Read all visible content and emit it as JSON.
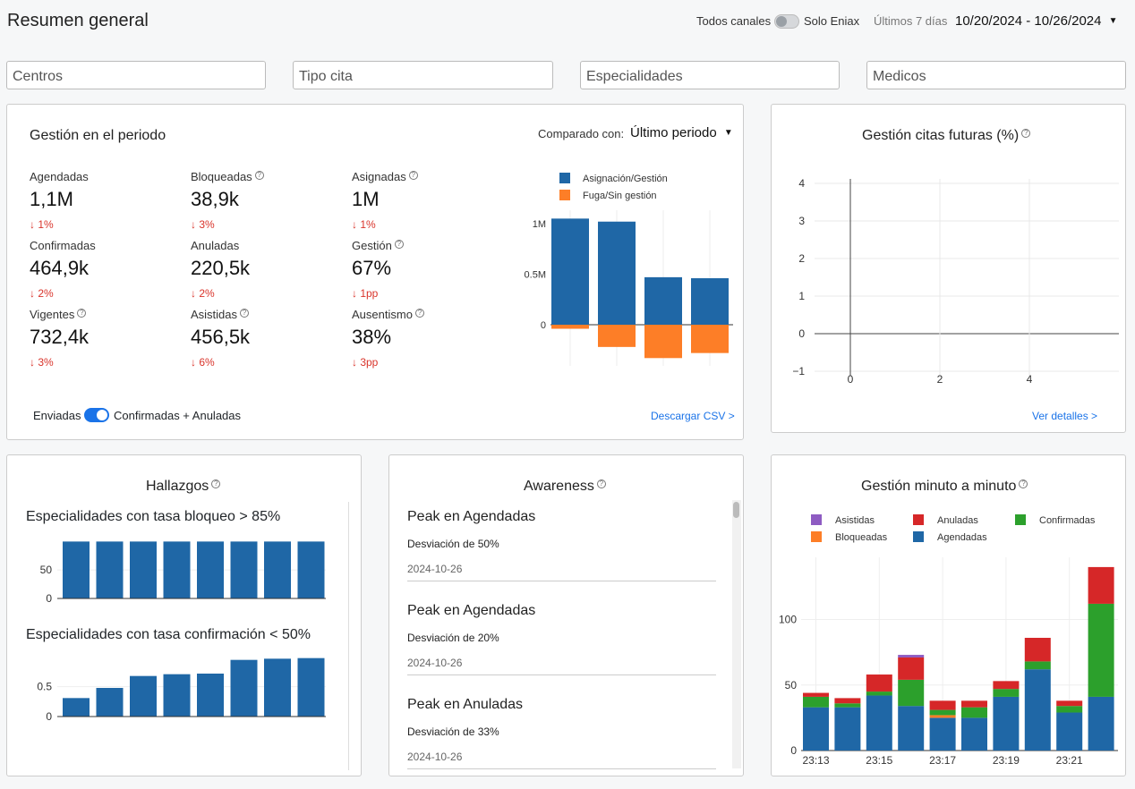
{
  "header": {
    "title": "Resumen general",
    "channels_label": "Todos canales",
    "solo_label": "Solo Eniax",
    "range_label": "Últimos 7 días",
    "date_range": "10/20/2024 - 10/26/2024"
  },
  "filters": {
    "centros": "Centros",
    "tipo_cita": "Tipo cita",
    "especialidades": "Especialidades",
    "medicos": "Medicos"
  },
  "gestion": {
    "title": "Gestión en el periodo",
    "compare_label": "Comparado con:",
    "compare_value": "Último periodo",
    "metrics": [
      {
        "label": "Agendadas",
        "value": "1,1M",
        "delta": "↓ 1%",
        "help": false
      },
      {
        "label": "Bloqueadas",
        "value": "38,9k",
        "delta": "↓ 3%",
        "help": true
      },
      {
        "label": "Asignadas",
        "value": "1M",
        "delta": "↓ 1%",
        "help": true
      },
      {
        "label": "Confirmadas",
        "value": "464,9k",
        "delta": "↓ 2%",
        "help": false
      },
      {
        "label": "Anuladas",
        "value": "220,5k",
        "delta": "↓ 2%",
        "help": false
      },
      {
        "label": "Gestión",
        "value": "67%",
        "delta": "↓ 1pp",
        "help": true
      },
      {
        "label": "Vigentes",
        "value": "732,4k",
        "delta": "↓ 3%",
        "help": true
      },
      {
        "label": "Asistidas",
        "value": "456,5k",
        "delta": "↓ 6%",
        "help": true
      },
      {
        "label": "Ausentismo",
        "value": "38%",
        "delta": "↓ 3pp",
        "help": true
      }
    ],
    "toggle_left": "Enviadas",
    "toggle_right": "Confirmadas + Anuladas",
    "download": "Descargar CSV >",
    "legend": [
      "Asignación/Gestión",
      "Fuga/Sin gestión"
    ],
    "yticks": [
      "1M",
      "0.5M",
      "0"
    ],
    "colors": {
      "positive": "#1f67a6",
      "negative": "#fd7e27"
    }
  },
  "futuras": {
    "title": "Gestión citas futuras (%)",
    "yticks": [
      "4",
      "3",
      "2",
      "1",
      "0",
      "−1"
    ],
    "xticks": [
      "0",
      "2",
      "4"
    ],
    "link": "Ver detalles >"
  },
  "hallazgos": {
    "title": "Hallazgos",
    "sub1": "Especialidades con tasa bloqueo > 85%",
    "sub1_yticks": [
      "50",
      "0"
    ],
    "sub2": "Especialidades con tasa confirmación < 50%",
    "sub2_yticks": [
      "0.5",
      "0"
    ]
  },
  "awareness": {
    "title": "Awareness",
    "items": [
      {
        "title": "Peak en Agendadas",
        "desc": "Desviación de 50%",
        "date": "2024-10-26"
      },
      {
        "title": "Peak en Agendadas",
        "desc": "Desviación de 20%",
        "date": "2024-10-26"
      },
      {
        "title": "Peak en Anuladas",
        "desc": "Desviación de 33%",
        "date": "2024-10-26"
      }
    ]
  },
  "minuto": {
    "title": "Gestión minuto a minuto",
    "legend": [
      "Asistidas",
      "Anuladas",
      "Confirmadas",
      "Bloqueadas",
      "Agendadas"
    ]
  },
  "chart_data": [
    {
      "type": "bar",
      "title": "",
      "categories": [
        "1",
        "2",
        "3",
        "4"
      ],
      "series": [
        {
          "name": "Asignación/Gestión",
          "values": [
            1050000,
            1020000,
            470000,
            460000
          ]
        },
        {
          "name": "Fuga/Sin gestión",
          "values": [
            -40000,
            -220000,
            -330000,
            -280000
          ]
        }
      ],
      "ylim": [
        -400000,
        1150000
      ],
      "legend": "top",
      "colors": [
        "#1f67a6",
        "#fd7e27"
      ]
    },
    {
      "type": "line",
      "title": "Gestión citas futuras (%)",
      "series": [],
      "xlim": [
        -1,
        6
      ],
      "ylim": [
        -1,
        4
      ],
      "grid": true
    },
    {
      "type": "bar",
      "title": "Especialidades con tasa bloqueo > 85%",
      "categories": [
        "1",
        "2",
        "3",
        "4",
        "5",
        "6",
        "7",
        "8"
      ],
      "values": [
        100,
        100,
        100,
        100,
        100,
        100,
        100,
        100
      ],
      "ylim": [
        0,
        110
      ],
      "color": "#1f67a6"
    },
    {
      "type": "bar",
      "title": "Especialidades con tasa confirmación < 50%",
      "categories": [
        "1",
        "2",
        "3",
        "4",
        "5",
        "6",
        "7",
        "8"
      ],
      "values": [
        0.31,
        0.48,
        0.68,
        0.71,
        0.72,
        0.95,
        0.97,
        0.98
      ],
      "ylim": [
        0,
        1.05
      ],
      "color": "#1f67a6"
    },
    {
      "type": "bar",
      "title": "Gestión minuto a minuto",
      "stacked": true,
      "categories": [
        "23:13",
        "23:14",
        "23:15",
        "23:16",
        "23:17",
        "23:18",
        "23:19",
        "23:20",
        "23:21",
        "23:22"
      ],
      "xticks": [
        "23:13",
        "23:15",
        "23:17",
        "23:19",
        "23:21"
      ],
      "yticks": [
        "100",
        "50",
        "0"
      ],
      "series": [
        {
          "name": "Agendadas",
          "values": [
            33,
            33,
            42,
            34,
            25,
            25,
            41,
            62,
            29,
            41
          ],
          "color": "#1f67a6"
        },
        {
          "name": "Bloqueadas",
          "values": [
            0,
            0,
            0,
            0,
            2,
            0,
            0,
            0,
            0,
            0
          ],
          "color": "#fd7e27"
        },
        {
          "name": "Confirmadas",
          "values": [
            8,
            3,
            3,
            20,
            4,
            8,
            6,
            6,
            5,
            71
          ],
          "color": "#2ca02c"
        },
        {
          "name": "Anuladas",
          "values": [
            3,
            4,
            13,
            17,
            7,
            5,
            6,
            18,
            4,
            28
          ],
          "color": "#d62728"
        },
        {
          "name": "Asistidas",
          "values": [
            0,
            0,
            0,
            2,
            0,
            0,
            0,
            0,
            0,
            0
          ],
          "color": "#8e5cc2"
        }
      ],
      "ylim": [
        0,
        150
      ],
      "legend": "top"
    }
  ]
}
